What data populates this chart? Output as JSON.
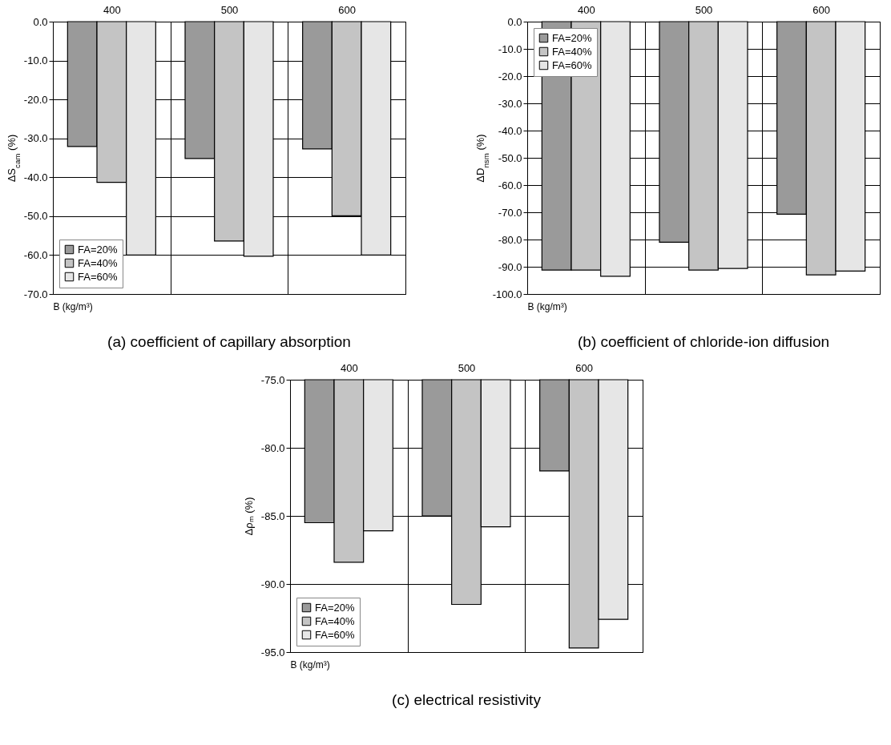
{
  "chart_data": [
    {
      "type": "bar",
      "title": "(a) coefficient of capillary absorption",
      "xlabel": "B (kg/m³)",
      "ylabel": "ΔS$_{cam}$ (%)",
      "categories": [
        "400",
        "500",
        "600"
      ],
      "series": [
        {
          "name": "FA=20%",
          "color": "#9a9a9a",
          "values": [
            -32.1,
            -35.2,
            -32.7
          ]
        },
        {
          "name": "FA=40%",
          "color": "#c4c4c4",
          "values": [
            -41.3,
            -56.4,
            -49.9
          ]
        },
        {
          "name": "FA=60%",
          "color": "#e6e6e6",
          "values": [
            -60.0,
            -60.3,
            -60.0
          ]
        }
      ],
      "ylim": [
        -70,
        0
      ],
      "yticks": [
        {
          "value": -70,
          "label": "-70.0"
        },
        {
          "value": -60,
          "label": "-60.0"
        },
        {
          "value": -50,
          "label": "-50.0"
        },
        {
          "value": -40,
          "label": "-40.0"
        },
        {
          "value": -30,
          "label": "-30.0"
        },
        {
          "value": -20,
          "label": "-20.0"
        },
        {
          "value": -10,
          "label": "-10.0"
        },
        {
          "value": 0,
          "label": "0.0"
        }
      ],
      "grid": true,
      "legend": "bottom left"
    },
    {
      "type": "bar",
      "title": "(b) coefficient of chloride-ion diffusion",
      "xlabel": "B (kg/m³)",
      "ylabel": "ΔD$_{nsm}$ (%)",
      "categories": [
        "400",
        "500",
        "600"
      ],
      "series": [
        {
          "name": "FA=20%",
          "color": "#9a9a9a",
          "values": [
            -91.2,
            -81.0,
            -70.7
          ]
        },
        {
          "name": "FA=40%",
          "color": "#c4c4c4",
          "values": [
            -91.2,
            -91.2,
            -93.0
          ]
        },
        {
          "name": "FA=60%",
          "color": "#e6e6e6",
          "values": [
            -93.5,
            -90.6,
            -91.6
          ]
        }
      ],
      "ylim": [
        -100,
        0
      ],
      "yticks": [
        {
          "value": -100,
          "label": "-100.0"
        },
        {
          "value": -90,
          "label": "-90.0"
        },
        {
          "value": -80,
          "label": "-80.0"
        },
        {
          "value": -70,
          "label": "-70.0"
        },
        {
          "value": -60,
          "label": "-60.0"
        },
        {
          "value": -50,
          "label": "-50.0"
        },
        {
          "value": -40,
          "label": "-40.0"
        },
        {
          "value": -30,
          "label": "-30.0"
        },
        {
          "value": -20,
          "label": "-20.0"
        },
        {
          "value": -10,
          "label": "-10.0"
        },
        {
          "value": 0,
          "label": "0.0"
        }
      ],
      "grid": true,
      "legend": "top left"
    },
    {
      "type": "bar",
      "title": "(c) electrical resistivity",
      "xlabel": "B (kg/m³)",
      "ylabel": "Δρₘ (%)",
      "categories": [
        "400",
        "500",
        "600"
      ],
      "series": [
        {
          "name": "FA=20%",
          "color": "#9a9a9a",
          "values": [
            -85.5,
            -85.0,
            -81.7
          ]
        },
        {
          "name": "FA=40%",
          "color": "#c4c4c4",
          "values": [
            -88.4,
            -91.5,
            -94.7
          ]
        },
        {
          "name": "FA=60%",
          "color": "#e6e6e6",
          "values": [
            -86.1,
            -85.8,
            -92.6
          ]
        }
      ],
      "ylim": [
        -95,
        -75
      ],
      "yticks": [
        {
          "value": -95,
          "label": "-95.0"
        },
        {
          "value": -90,
          "label": "-90.0"
        },
        {
          "value": -85,
          "label": "-85.0"
        },
        {
          "value": -80,
          "label": "-80.0"
        },
        {
          "value": -75,
          "label": "-75.0"
        }
      ],
      "grid": true,
      "legend": "bottom left"
    }
  ]
}
